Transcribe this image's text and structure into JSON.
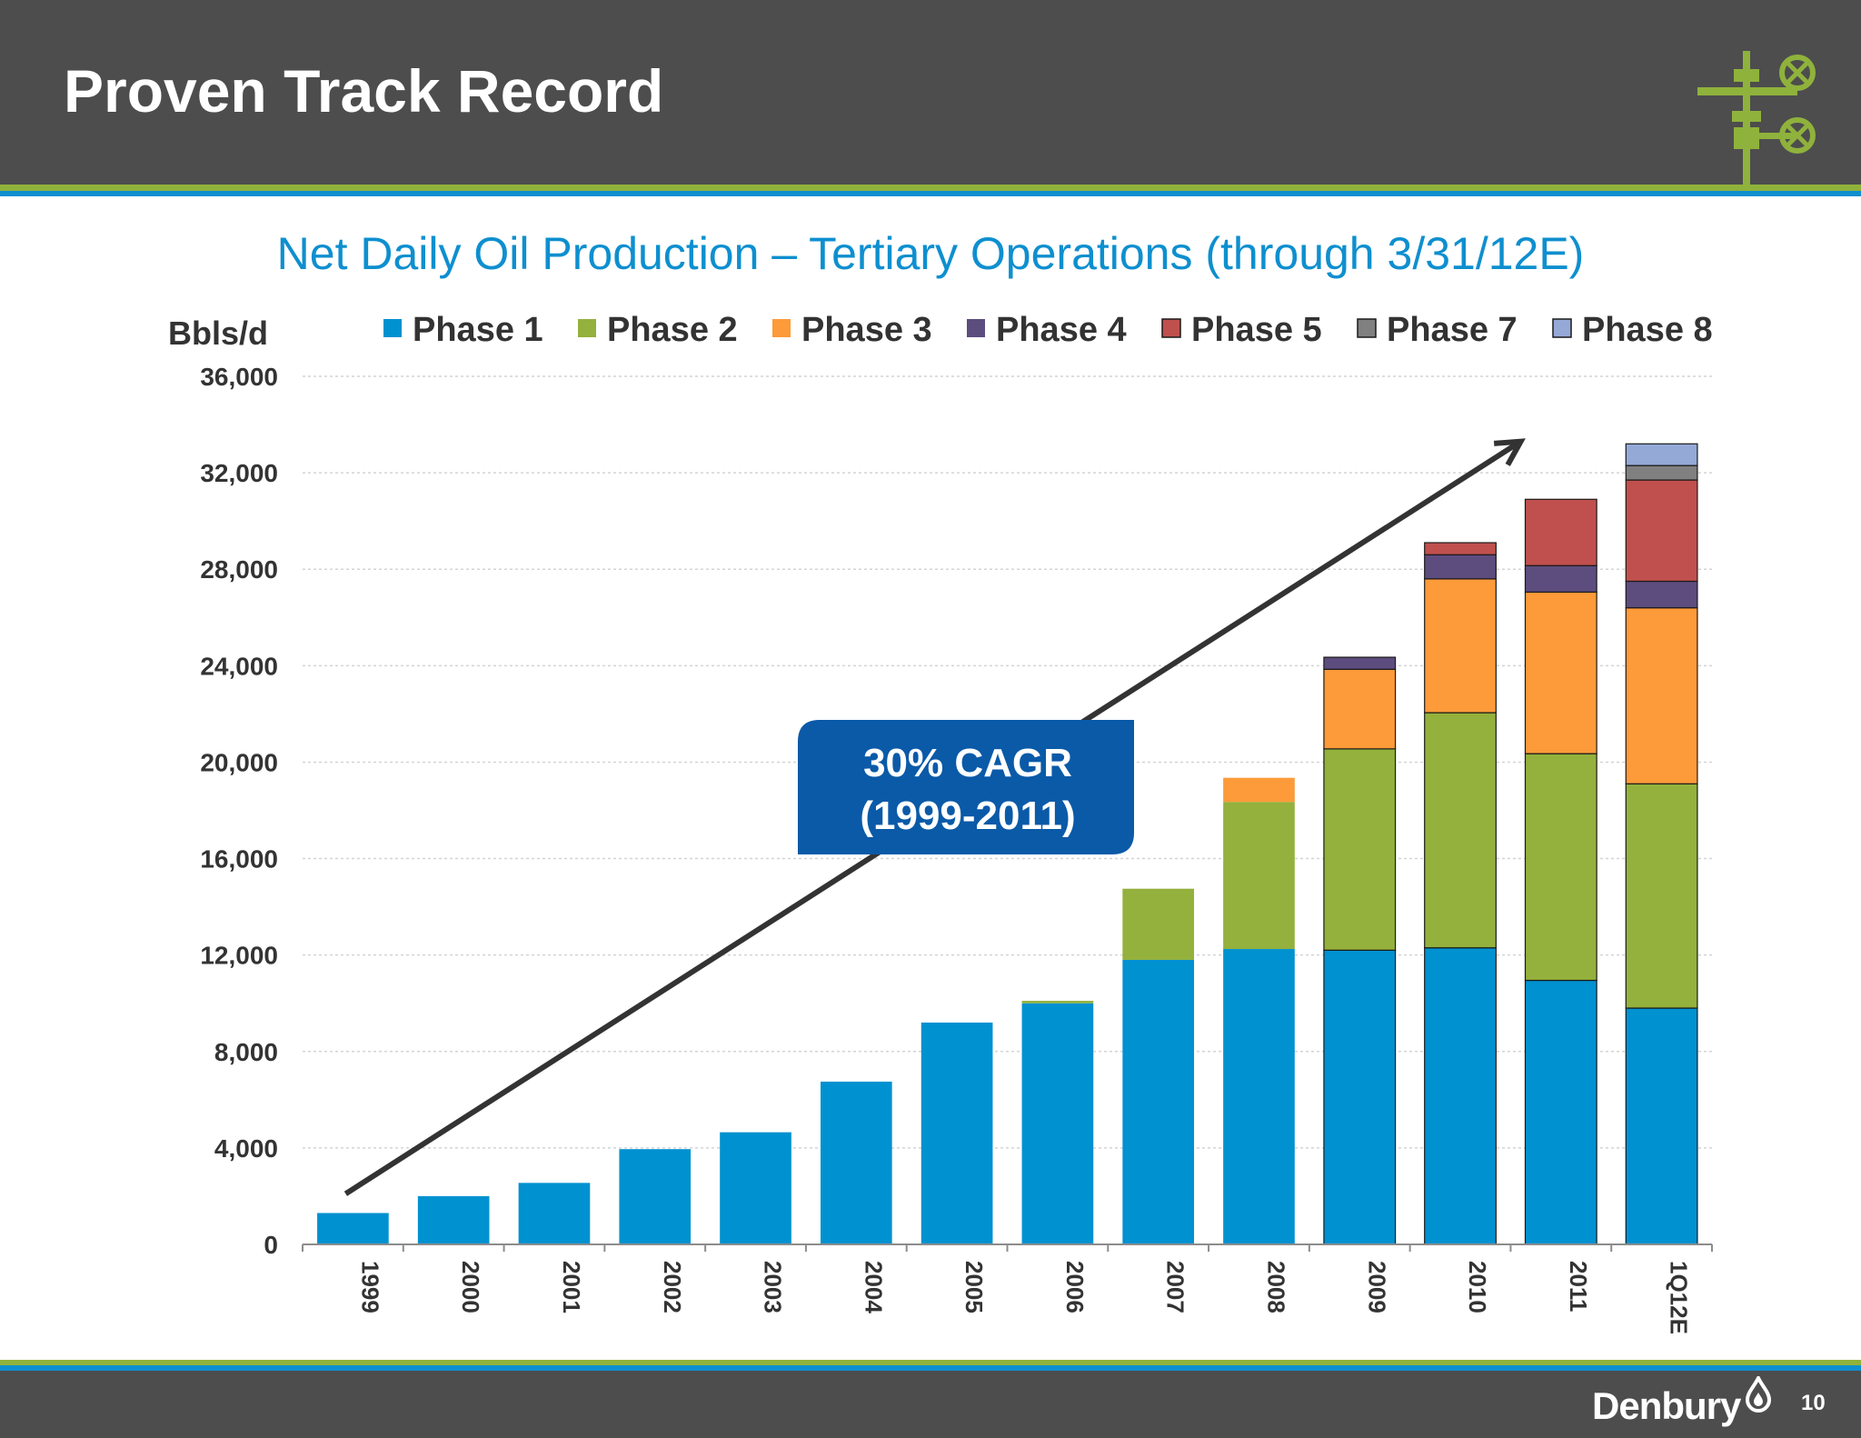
{
  "slide": {
    "title": "Proven Track Record",
    "page_number": "10",
    "brand": "Denbury",
    "logo_icon": "wellhead-valve-icon",
    "brand_icon": "oil-drop-flame-icon",
    "colors": {
      "header": "#4d4d4d",
      "green_stripe": "#8fb23c",
      "blue_stripe": "#0e8fcf",
      "subtitle": "#0e8fcf",
      "callout": "#0a5aa8"
    }
  },
  "chart_data": {
    "type": "bar",
    "stacked": true,
    "title": "Net Daily Oil Production – Tertiary Operations (through 3/31/12E)",
    "ylabel": "Bbls/d",
    "xlabel": "",
    "ylim": [
      0,
      36000
    ],
    "yticks": [
      0,
      4000,
      8000,
      12000,
      16000,
      20000,
      24000,
      28000,
      32000,
      36000
    ],
    "ytick_labels": [
      "0",
      "4,000",
      "8,000",
      "12,000",
      "16,000",
      "20,000",
      "24,000",
      "28,000",
      "32,000",
      "36,000"
    ],
    "grid": true,
    "legend_position": "top",
    "categories": [
      "1999",
      "2000",
      "2001",
      "2002",
      "2003",
      "2004",
      "2005",
      "2006",
      "2007",
      "2008",
      "2009",
      "2010",
      "2011",
      "1Q12E"
    ],
    "series": [
      {
        "name": "Phase 1",
        "color": "#0091d0",
        "values": [
          1300,
          2000,
          2550,
          3950,
          4650,
          6750,
          9200,
          10000,
          11800,
          12250,
          12200,
          12300,
          10950,
          9800
        ]
      },
      {
        "name": "Phase 2",
        "color": "#93b13c",
        "values": [
          0,
          0,
          0,
          0,
          0,
          0,
          0,
          100,
          2950,
          6100,
          8350,
          9750,
          9400,
          9300
        ]
      },
      {
        "name": "Phase 3",
        "color": "#fd9a39",
        "values": [
          0,
          0,
          0,
          0,
          0,
          0,
          0,
          0,
          0,
          1000,
          3300,
          5550,
          6700,
          7300
        ]
      },
      {
        "name": "Phase 4",
        "color": "#5d4c7e",
        "values": [
          0,
          0,
          0,
          0,
          0,
          0,
          0,
          0,
          0,
          0,
          500,
          1000,
          1100,
          1100
        ]
      },
      {
        "name": "Phase 5",
        "color": "#c0504d",
        "values": [
          0,
          0,
          0,
          0,
          0,
          0,
          0,
          0,
          0,
          0,
          0,
          500,
          2750,
          4200
        ]
      },
      {
        "name": "Phase 7",
        "color": "#808080",
        "values": [
          0,
          0,
          0,
          0,
          0,
          0,
          0,
          0,
          0,
          0,
          0,
          0,
          0,
          600
        ]
      },
      {
        "name": "Phase 8",
        "color": "#95a9d7",
        "values": [
          0,
          0,
          0,
          0,
          0,
          0,
          0,
          0,
          0,
          0,
          0,
          0,
          0,
          900
        ]
      }
    ],
    "annotation": {
      "lines": [
        "30% CAGR",
        "(1999-2011)"
      ],
      "trend_from": {
        "x": "1999",
        "y": 2100
      },
      "trend_to": {
        "x": "1Q12E",
        "y": 33300
      }
    }
  }
}
